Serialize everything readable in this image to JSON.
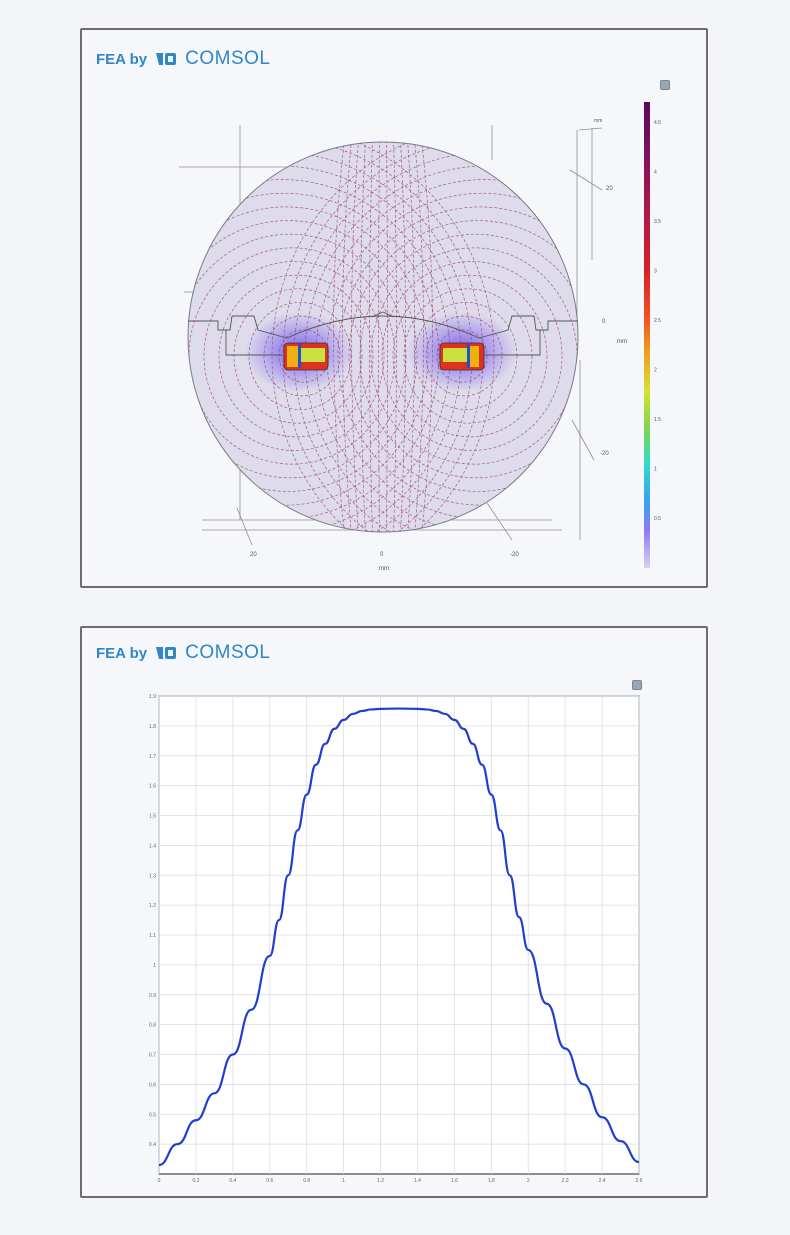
{
  "brand": {
    "prefix": "FEA by",
    "product": "COMSOL",
    "color": "#2f86c9"
  },
  "panel1": {
    "unit_label_top": "mm",
    "x_ticks": [
      "20",
      "0",
      "-20"
    ],
    "x_unit": "mm",
    "side_ticks": [
      "20",
      "0",
      "-20"
    ],
    "side_unit": "mm",
    "colorbar_ticks": [
      "4.5",
      "4",
      "3.5",
      "3",
      "2.5",
      "2",
      "1.5",
      "1",
      "0.5"
    ],
    "colors": {
      "background": "#dcdbe9",
      "field_line": "#9a3a6a",
      "magnet": "#f0c400"
    }
  },
  "chart_data": {
    "type": "line",
    "title": "",
    "xlabel": "",
    "ylabel": "",
    "xlim": [
      0,
      2.6
    ],
    "ylim": [
      0.3,
      1.9
    ],
    "x_ticks": [
      0,
      0.2,
      0.4,
      0.6,
      0.8,
      1,
      1.2,
      1.4,
      1.6,
      1.8,
      2,
      2.2,
      2.4,
      2.6
    ],
    "y_ticks": [
      0.4,
      0.5,
      0.6,
      0.7,
      0.8,
      0.9,
      1,
      1.1,
      1.2,
      1.3,
      1.4,
      1.5,
      1.6,
      1.7,
      1.8,
      1.9
    ],
    "grid": true,
    "series": [
      {
        "color": "#1f3fd0",
        "x": [
          0,
          0.1,
          0.2,
          0.3,
          0.4,
          0.5,
          0.6,
          0.65,
          0.7,
          0.75,
          0.8,
          0.85,
          0.9,
          0.95,
          1.0,
          1.05,
          1.1,
          1.15,
          1.2,
          1.3,
          1.4,
          1.45,
          1.5,
          1.55,
          1.6,
          1.65,
          1.7,
          1.75,
          1.8,
          1.85,
          1.9,
          1.95,
          2.0,
          2.1,
          2.2,
          2.3,
          2.4,
          2.5,
          2.6
        ],
        "y": [
          0.33,
          0.4,
          0.48,
          0.57,
          0.7,
          0.85,
          1.03,
          1.15,
          1.3,
          1.45,
          1.57,
          1.67,
          1.74,
          1.79,
          1.82,
          1.84,
          1.85,
          1.855,
          1.857,
          1.858,
          1.857,
          1.855,
          1.85,
          1.84,
          1.82,
          1.79,
          1.74,
          1.67,
          1.57,
          1.45,
          1.3,
          1.16,
          1.05,
          0.87,
          0.72,
          0.6,
          0.49,
          0.41,
          0.34
        ]
      }
    ]
  }
}
